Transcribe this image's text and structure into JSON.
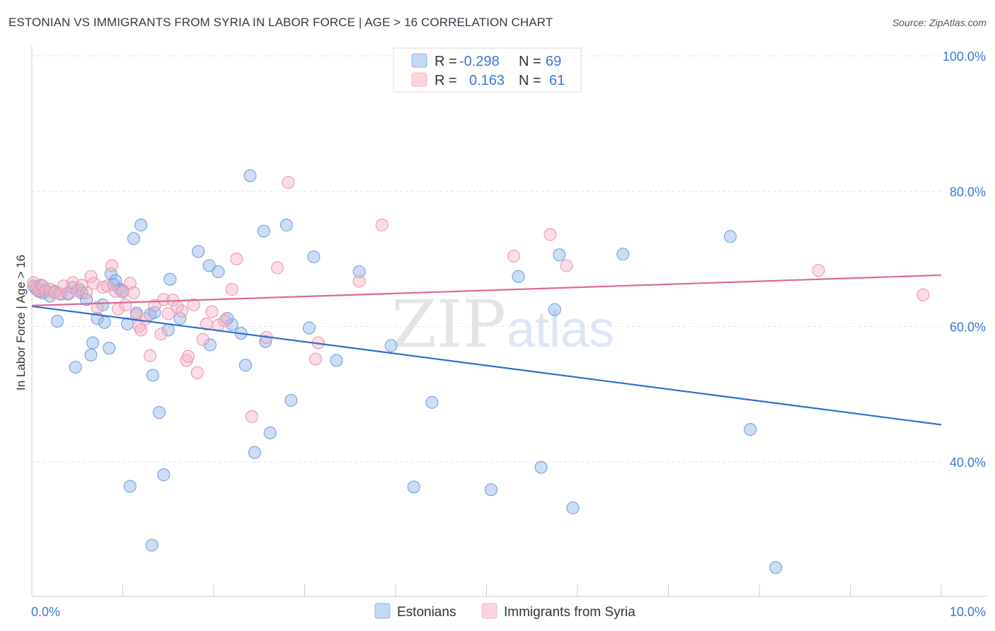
{
  "title": "ESTONIAN VS IMMIGRANTS FROM SYRIA IN LABOR FORCE | AGE > 16 CORRELATION CHART",
  "source": "Source: ZipAtlas.com",
  "watermark": {
    "zip": "ZIP",
    "atlas": "atlas"
  },
  "chart_data": {
    "type": "scatter",
    "xlabel": "",
    "ylabel": "In Labor Force | Age > 16",
    "xlim": [
      0,
      10
    ],
    "ylim": [
      17,
      104
    ],
    "x_tick_labels": [
      {
        "value": 0,
        "label": "0.0%"
      },
      {
        "value": 10,
        "label": "10.0%"
      }
    ],
    "y_tick_labels": [
      {
        "value": 40,
        "label": "40.0%"
      },
      {
        "value": 60,
        "label": "60.0%"
      },
      {
        "value": 80,
        "label": "80.0%"
      },
      {
        "value": 100,
        "label": "100.0%"
      }
    ],
    "legend_stats": [
      {
        "r_label": "R =",
        "r_value": "-0.298",
        "n_label": "N =",
        "n_value": "69"
      },
      {
        "r_label": "R =",
        "r_value": "0.163",
        "n_label": "N =",
        "n_value": "61"
      }
    ],
    "series": [
      {
        "name": "Estonians",
        "color": "#8fb4e8",
        "stroke": "#6d9ad8",
        "line_color": "#2d6fcf",
        "trend": [
          [
            0,
            63.0
          ],
          [
            10,
            45.5
          ]
        ],
        "points": [
          [
            0.02,
            66.0
          ],
          [
            0.05,
            65.5
          ],
          [
            0.08,
            65.2
          ],
          [
            0.1,
            66.1
          ],
          [
            0.12,
            65.0
          ],
          [
            0.15,
            65.4
          ],
          [
            0.2,
            64.5
          ],
          [
            0.25,
            65.2
          ],
          [
            0.28,
            60.8
          ],
          [
            0.32,
            64.8
          ],
          [
            0.4,
            64.8
          ],
          [
            0.45,
            65.8
          ],
          [
            0.48,
            54.0
          ],
          [
            0.52,
            65.5
          ],
          [
            0.55,
            65.0
          ],
          [
            0.6,
            64.0
          ],
          [
            0.65,
            55.8
          ],
          [
            0.67,
            57.6
          ],
          [
            0.72,
            61.2
          ],
          [
            0.78,
            63.2
          ],
          [
            0.8,
            60.6
          ],
          [
            0.85,
            56.8
          ],
          [
            0.87,
            67.8
          ],
          [
            0.9,
            66.2
          ],
          [
            0.92,
            66.8
          ],
          [
            0.97,
            65.5
          ],
          [
            1.0,
            65.3
          ],
          [
            1.05,
            60.4
          ],
          [
            1.08,
            36.4
          ],
          [
            1.12,
            73.0
          ],
          [
            1.15,
            62.0
          ],
          [
            1.2,
            75.0
          ],
          [
            1.3,
            61.8
          ],
          [
            1.33,
            52.8
          ],
          [
            1.35,
            62.1
          ],
          [
            1.4,
            47.3
          ],
          [
            1.45,
            38.1
          ],
          [
            1.5,
            59.5
          ],
          [
            1.52,
            67.0
          ],
          [
            1.63,
            61.2
          ],
          [
            1.32,
            27.7
          ],
          [
            1.83,
            71.1
          ],
          [
            1.95,
            69.0
          ],
          [
            1.96,
            57.3
          ],
          [
            2.05,
            68.1
          ],
          [
            2.15,
            61.2
          ],
          [
            2.2,
            60.3
          ],
          [
            2.3,
            59.0
          ],
          [
            2.35,
            54.3
          ],
          [
            2.4,
            82.3
          ],
          [
            2.45,
            41.4
          ],
          [
            2.55,
            74.1
          ],
          [
            2.57,
            57.8
          ],
          [
            2.62,
            44.3
          ],
          [
            2.8,
            75.0
          ],
          [
            2.85,
            49.1
          ],
          [
            3.05,
            59.8
          ],
          [
            3.1,
            70.3
          ],
          [
            3.35,
            55.0
          ],
          [
            3.6,
            68.1
          ],
          [
            3.95,
            57.2
          ],
          [
            4.2,
            36.3
          ],
          [
            4.4,
            48.8
          ],
          [
            5.05,
            35.9
          ],
          [
            5.35,
            67.4
          ],
          [
            5.6,
            39.2
          ],
          [
            5.75,
            62.5
          ],
          [
            5.8,
            70.6
          ],
          [
            5.95,
            33.2
          ],
          [
            6.5,
            70.7
          ],
          [
            7.68,
            73.3
          ],
          [
            7.9,
            44.8
          ],
          [
            8.18,
            24.4
          ]
        ]
      },
      {
        "name": "Immigrants from Syria",
        "color": "#f5b4c8",
        "stroke": "#ec90ab",
        "line_color": "#e0679a",
        "trend": [
          [
            0,
            63.1
          ],
          [
            10,
            67.6
          ]
        ],
        "points": [
          [
            0.02,
            66.5
          ],
          [
            0.05,
            65.8
          ],
          [
            0.08,
            65.3
          ],
          [
            0.12,
            66.0
          ],
          [
            0.15,
            65.2
          ],
          [
            0.2,
            65.5
          ],
          [
            0.25,
            65.0
          ],
          [
            0.3,
            64.9
          ],
          [
            0.35,
            66.0
          ],
          [
            0.4,
            65.0
          ],
          [
            0.45,
            66.5
          ],
          [
            0.5,
            65.3
          ],
          [
            0.55,
            66.1
          ],
          [
            0.6,
            65.0
          ],
          [
            0.65,
            67.4
          ],
          [
            0.68,
            66.4
          ],
          [
            0.72,
            62.8
          ],
          [
            0.78,
            65.8
          ],
          [
            0.83,
            66.0
          ],
          [
            0.88,
            69.0
          ],
          [
            0.92,
            65.2
          ],
          [
            0.95,
            62.6
          ],
          [
            1.0,
            65.1
          ],
          [
            1.03,
            63.2
          ],
          [
            1.08,
            66.4
          ],
          [
            1.12,
            65.0
          ],
          [
            1.15,
            61.7
          ],
          [
            1.18,
            60.0
          ],
          [
            1.2,
            59.5
          ],
          [
            1.25,
            61.1
          ],
          [
            1.3,
            55.7
          ],
          [
            1.35,
            63.1
          ],
          [
            1.42,
            58.9
          ],
          [
            1.45,
            64.0
          ],
          [
            1.5,
            61.9
          ],
          [
            1.55,
            63.9
          ],
          [
            1.6,
            62.9
          ],
          [
            1.65,
            62.3
          ],
          [
            1.7,
            55.0
          ],
          [
            1.72,
            55.6
          ],
          [
            1.78,
            63.2
          ],
          [
            1.82,
            53.2
          ],
          [
            1.88,
            58.1
          ],
          [
            1.92,
            60.4
          ],
          [
            1.98,
            62.2
          ],
          [
            2.05,
            60.2
          ],
          [
            2.12,
            60.9
          ],
          [
            2.2,
            65.5
          ],
          [
            2.25,
            70.0
          ],
          [
            2.42,
            46.7
          ],
          [
            2.58,
            58.4
          ],
          [
            2.7,
            68.7
          ],
          [
            2.82,
            81.3
          ],
          [
            3.12,
            55.2
          ],
          [
            3.15,
            57.6
          ],
          [
            3.6,
            66.7
          ],
          [
            3.85,
            75.0
          ],
          [
            5.3,
            70.4
          ],
          [
            5.7,
            73.6
          ],
          [
            5.88,
            69.0
          ],
          [
            8.65,
            68.3
          ],
          [
            9.8,
            64.7
          ]
        ]
      }
    ]
  }
}
